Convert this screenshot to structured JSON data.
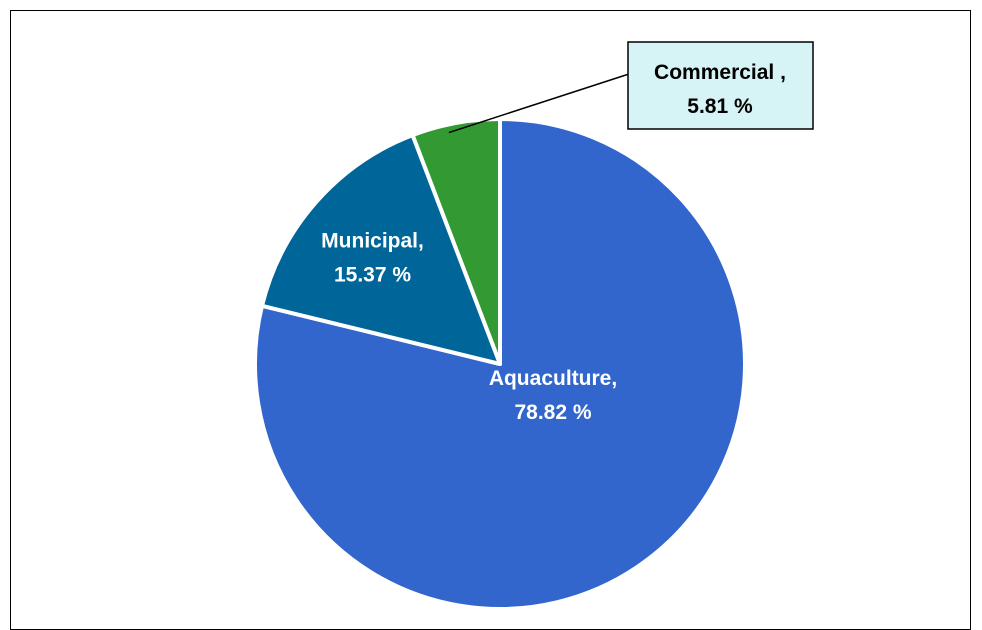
{
  "chart_data": {
    "type": "pie",
    "title": "",
    "slices": [
      {
        "label": "Commercial",
        "value": 5.81,
        "display_line1": "Commercial ,",
        "display_line2": "5.81 %",
        "color": "#339933",
        "label_style": "callout"
      },
      {
        "label": "Aquaculture",
        "value": 78.82,
        "display_line1": "Aquaculture,",
        "display_line2": "78.82 %",
        "color": "#3366CC",
        "label_style": "inside"
      },
      {
        "label": "Municipal",
        "value": 15.37,
        "display_line1": "Municipal,",
        "display_line2": "15.37 %",
        "color": "#006699",
        "label_style": "inside"
      }
    ],
    "legend": "none",
    "callout_fill": "#D6F3F6"
  }
}
